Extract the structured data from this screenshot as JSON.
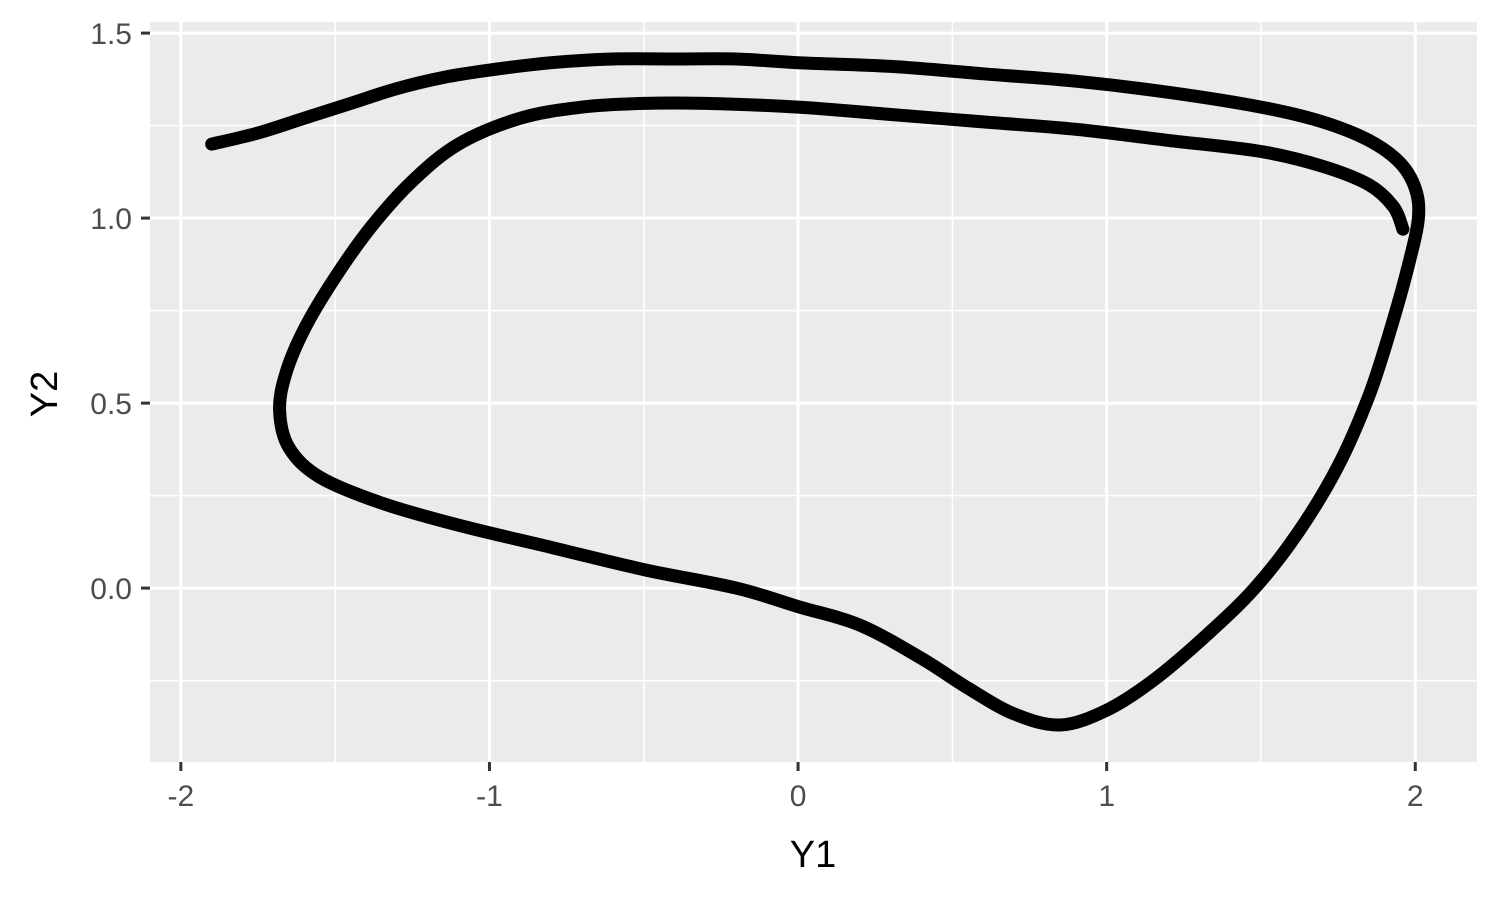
{
  "chart_data": {
    "type": "line",
    "title": "",
    "xlabel": "Y1",
    "ylabel": "Y2",
    "xlim": [
      -2.1,
      2.2
    ],
    "ylim": [
      -0.47,
      1.53
    ],
    "x_ticks": [
      -2,
      -1,
      0,
      1,
      2
    ],
    "x_tick_labels": [
      "-2",
      "-1",
      "0",
      "1",
      "2"
    ],
    "y_ticks": [
      0.0,
      0.5,
      1.0,
      1.5
    ],
    "y_tick_labels": [
      "0.0",
      "0.5",
      "1.0",
      "1.5"
    ],
    "grid": true,
    "panel_background": "#ebebeb",
    "grid_color": "#ffffff",
    "line_color": "#000000",
    "series": [
      {
        "x": [
          -1.9,
          -1.75,
          -1.6,
          -1.45,
          -1.3,
          -1.15,
          -1.0,
          -0.8,
          -0.6,
          -0.4,
          -0.2,
          0.0,
          0.3,
          0.6,
          0.9,
          1.2,
          1.5,
          1.7,
          1.85,
          1.95,
          2.0,
          2.01,
          1.98,
          1.92,
          1.85,
          1.75,
          1.62,
          1.48,
          1.32,
          1.15,
          1.0,
          0.85,
          0.7,
          0.55,
          0.4,
          0.2,
          0.0,
          -0.2,
          -0.5,
          -0.8,
          -1.1,
          -1.35,
          -1.55,
          -1.65,
          -1.68,
          -1.66,
          -1.6,
          -1.5,
          -1.38,
          -1.25,
          -1.1,
          -0.9,
          -0.7,
          -0.5,
          -0.3,
          0.0,
          0.3,
          0.6,
          0.9,
          1.2,
          1.5,
          1.7,
          1.85,
          1.93,
          1.96
        ],
        "y": [
          1.2,
          1.23,
          1.27,
          1.31,
          1.35,
          1.38,
          1.4,
          1.42,
          1.43,
          1.43,
          1.43,
          1.42,
          1.41,
          1.39,
          1.37,
          1.34,
          1.3,
          1.26,
          1.21,
          1.15,
          1.08,
          1.0,
          0.88,
          0.7,
          0.52,
          0.33,
          0.15,
          0.0,
          -0.13,
          -0.25,
          -0.33,
          -0.37,
          -0.34,
          -0.27,
          -0.19,
          -0.1,
          -0.05,
          0.0,
          0.05,
          0.11,
          0.17,
          0.23,
          0.3,
          0.38,
          0.48,
          0.58,
          0.7,
          0.84,
          0.98,
          1.1,
          1.2,
          1.27,
          1.3,
          1.31,
          1.31,
          1.3,
          1.28,
          1.26,
          1.24,
          1.21,
          1.18,
          1.14,
          1.09,
          1.03,
          0.97
        ]
      }
    ]
  }
}
